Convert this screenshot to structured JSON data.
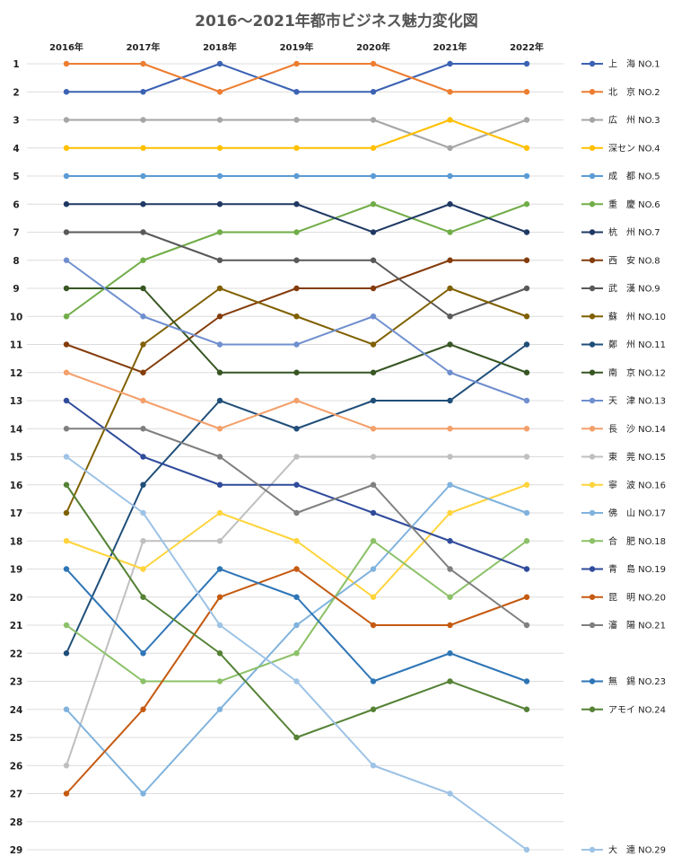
{
  "chart_data": {
    "type": "line",
    "title": "2016～2021年都市ビジネス魅力変化図",
    "x": [
      "2016年",
      "2017年",
      "2018年",
      "2019年",
      "2020年",
      "2021年",
      "2022年"
    ],
    "y_ticks": [
      1,
      2,
      3,
      4,
      5,
      6,
      7,
      8,
      9,
      10,
      11,
      12,
      13,
      14,
      15,
      16,
      17,
      18,
      19,
      20,
      21,
      22,
      23,
      24,
      25,
      26,
      27,
      28,
      29
    ],
    "ylim": [
      1,
      29
    ],
    "y_reversed": true,
    "grid": true,
    "legend_position": "right",
    "series": [
      {
        "name": "上　海 NO.1",
        "color": "#3b62b3",
        "values": [
          2,
          2,
          1,
          2,
          2,
          1,
          1
        ]
      },
      {
        "name": "北　京 NO.2",
        "color": "#ed7d31",
        "values": [
          1,
          1,
          2,
          1,
          1,
          2,
          2
        ]
      },
      {
        "name": "広　州 NO.3",
        "color": "#a5a5a5",
        "values": [
          3,
          3,
          3,
          3,
          3,
          4,
          3
        ]
      },
      {
        "name": "深セン NO.4",
        "color": "#ffc000",
        "values": [
          4,
          4,
          4,
          4,
          4,
          3,
          4
        ]
      },
      {
        "name": "成　都 NO.5",
        "color": "#5b9bd5",
        "values": [
          5,
          5,
          5,
          5,
          5,
          5,
          5
        ]
      },
      {
        "name": "重　慶 NO.6",
        "color": "#70ad47",
        "values": [
          10,
          8,
          7,
          7,
          6,
          7,
          6
        ]
      },
      {
        "name": "杭　州 NO.7",
        "color": "#1f3864",
        "values": [
          6,
          6,
          6,
          6,
          7,
          6,
          7
        ]
      },
      {
        "name": "西　安 NO.8",
        "color": "#843c0c",
        "values": [
          11,
          12,
          10,
          9,
          9,
          8,
          8
        ]
      },
      {
        "name": "武　漢 NO.9",
        "color": "#595959",
        "values": [
          7,
          7,
          8,
          8,
          8,
          10,
          9
        ]
      },
      {
        "name": "蘇　州 NO.10",
        "color": "#806000",
        "values": [
          17,
          11,
          9,
          10,
          11,
          9,
          10
        ]
      },
      {
        "name": "鄭　州 NO.11",
        "color": "#1f4e79",
        "values": [
          22,
          16,
          13,
          14,
          13,
          13,
          11
        ]
      },
      {
        "name": "南　京 NO.12",
        "color": "#375623",
        "values": [
          9,
          9,
          12,
          12,
          12,
          11,
          12
        ]
      },
      {
        "name": "天　津 NO.13",
        "color": "#6f8fcf",
        "values": [
          8,
          10,
          11,
          11,
          10,
          12,
          13
        ]
      },
      {
        "name": "長　沙 NO.14",
        "color": "#f4a06b",
        "values": [
          12,
          13,
          14,
          13,
          14,
          14,
          14
        ]
      },
      {
        "name": "東　莞 NO.15",
        "color": "#bfbfbf",
        "values": [
          26,
          18,
          18,
          15,
          15,
          15,
          15
        ]
      },
      {
        "name": "寧　波 NO.16",
        "color": "#ffd43b",
        "values": [
          18,
          19,
          17,
          18,
          20,
          17,
          16
        ]
      },
      {
        "name": "佛　山 NO.17",
        "color": "#7fb2dd",
        "values": [
          24,
          27,
          24,
          21,
          19,
          16,
          17
        ]
      },
      {
        "name": "合　肥 NO.18",
        "color": "#8cc168",
        "values": [
          21,
          23,
          23,
          22,
          18,
          20,
          18
        ]
      },
      {
        "name": "青　島 NO.19",
        "color": "#2f4b9b",
        "values": [
          13,
          15,
          16,
          16,
          17,
          18,
          19
        ]
      },
      {
        "name": "昆　明 NO.20",
        "color": "#c55a11",
        "values": [
          27,
          24,
          20,
          19,
          21,
          21,
          20
        ]
      },
      {
        "name": "瀋　陽 NO.21",
        "color": "#7f7f7f",
        "values": [
          14,
          14,
          15,
          17,
          16,
          19,
          21
        ]
      },
      {
        "name": "無　錫 NO.23",
        "color": "#2e75b6",
        "values": [
          19,
          22,
          19,
          20,
          23,
          22,
          23
        ]
      },
      {
        "name": "アモイ NO.24",
        "color": "#548235",
        "values": [
          16,
          20,
          22,
          25,
          24,
          23,
          24
        ]
      },
      {
        "name": "大　連 NO.29",
        "color": "#9dc3e6",
        "values": [
          15,
          17,
          21,
          23,
          26,
          27,
          29
        ]
      }
    ]
  }
}
